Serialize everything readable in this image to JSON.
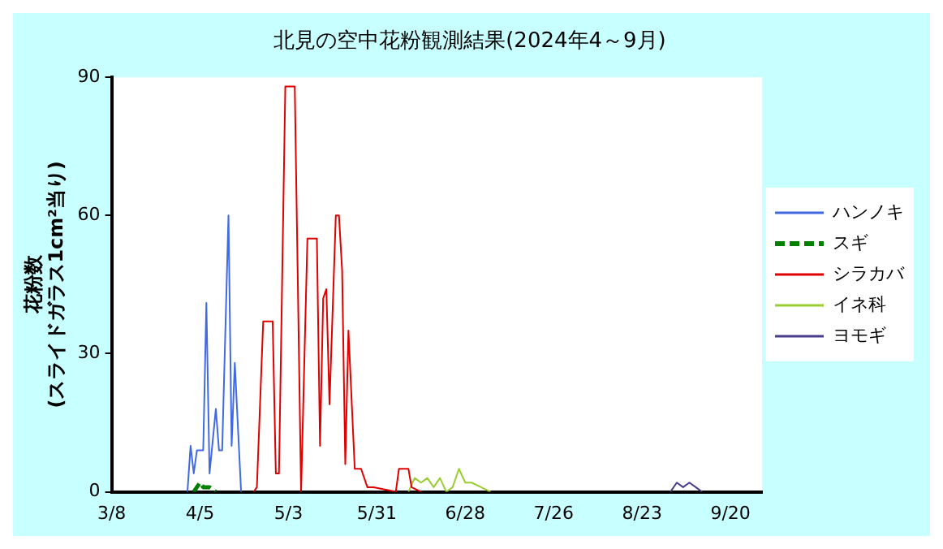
{
  "chart_data": {
    "type": "line",
    "title": "北見の空中花粉観測結果(2024年4～9月)",
    "ylabel": "花粉数\n(スライドガラス1cm²当り)",
    "xlim": [
      "2024-03-08",
      "2024-09-30"
    ],
    "xticks": [
      {
        "value": "2024-03-08",
        "label": "3/8"
      },
      {
        "value": "2024-04-05",
        "label": "4/5"
      },
      {
        "value": "2024-05-03",
        "label": "5/3"
      },
      {
        "value": "2024-05-31",
        "label": "5/31"
      },
      {
        "value": "2024-06-28",
        "label": "6/28"
      },
      {
        "value": "2024-07-26",
        "label": "7/26"
      },
      {
        "value": "2024-08-23",
        "label": "8/23"
      },
      {
        "value": "2024-09-20",
        "label": "9/20"
      }
    ],
    "ylim": [
      0,
      90
    ],
    "yticks": [
      0,
      30,
      60,
      90
    ],
    "grid": false,
    "legend": "right",
    "marker": "none",
    "series": [
      {
        "name": "ハンノキ",
        "color": "#4169e1",
        "x": [
          "2024-04-01",
          "2024-04-02",
          "2024-04-03",
          "2024-04-04",
          "2024-04-06",
          "2024-04-07",
          "2024-04-08",
          "2024-04-10",
          "2024-04-11",
          "2024-04-12",
          "2024-04-14",
          "2024-04-15",
          "2024-04-16",
          "2024-04-18"
        ],
        "values": [
          0,
          10,
          4,
          9,
          9,
          41,
          4,
          18,
          9,
          9,
          60,
          10,
          28,
          0
        ]
      },
      {
        "name": "スギ",
        "color": "#008000",
        "line_style": "dashed",
        "x": [
          "2024-04-03",
          "2024-04-04",
          "2024-04-05",
          "2024-04-06",
          "2024-04-08",
          "2024-04-10"
        ],
        "values": [
          0,
          1,
          2,
          1,
          1,
          0
        ]
      },
      {
        "name": "シラカバ",
        "color": "#e00000",
        "x": [
          "2024-04-22",
          "2024-04-23",
          "2024-04-25",
          "2024-04-28",
          "2024-04-29",
          "2024-04-30",
          "2024-05-02",
          "2024-05-05",
          "2024-05-07",
          "2024-05-09",
          "2024-05-12",
          "2024-05-13",
          "2024-05-14",
          "2024-05-15",
          "2024-05-16",
          "2024-05-18",
          "2024-05-19",
          "2024-05-20",
          "2024-05-21",
          "2024-05-22",
          "2024-05-24",
          "2024-05-26",
          "2024-05-28",
          "2024-05-30",
          "2024-06-06",
          "2024-06-07",
          "2024-06-10",
          "2024-06-11",
          "2024-06-14"
        ],
        "values": [
          0,
          1,
          37,
          37,
          4,
          4,
          88,
          88,
          0,
          55,
          55,
          10,
          42,
          44,
          19,
          60,
          60,
          48,
          6,
          35,
          5,
          5,
          1,
          1,
          0,
          5,
          5,
          1,
          0
        ]
      },
      {
        "name": "イネ科",
        "color": "#9acd32",
        "x": [
          "2024-06-10",
          "2024-06-12",
          "2024-06-14",
          "2024-06-16",
          "2024-06-18",
          "2024-06-20",
          "2024-06-22",
          "2024-06-24",
          "2024-06-26",
          "2024-06-28",
          "2024-06-30",
          "2024-07-03",
          "2024-07-06"
        ],
        "values": [
          0,
          3,
          2,
          3,
          1,
          3,
          0,
          1,
          5,
          2,
          2,
          1,
          0
        ]
      },
      {
        "name": "ヨモギ",
        "color": "#483d8b",
        "x": [
          "2024-09-01",
          "2024-09-03",
          "2024-09-05",
          "2024-09-07",
          "2024-09-09",
          "2024-09-11"
        ],
        "values": [
          0,
          2,
          1,
          2,
          1,
          0
        ]
      }
    ]
  }
}
